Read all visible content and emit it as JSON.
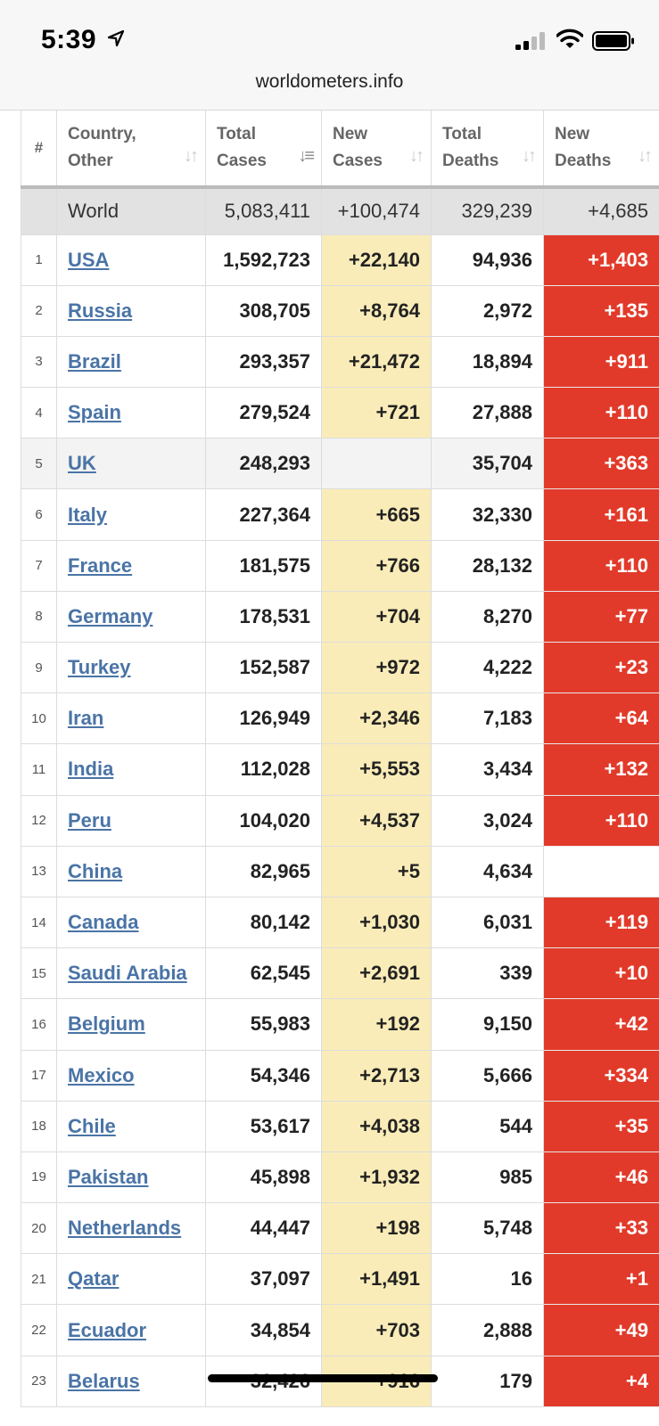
{
  "status_bar": {
    "time": "5:39"
  },
  "browser": {
    "url": "worldometers.info"
  },
  "table": {
    "headers": {
      "rank": "#",
      "country_line1": "Country,",
      "country_line2": "Other",
      "total_cases_line1": "Total",
      "total_cases_line2": "Cases",
      "new_cases_line1": "New",
      "new_cases_line2": "Cases",
      "total_deaths_line1": "Total",
      "total_deaths_line2": "Deaths",
      "new_deaths_line1": "New",
      "new_deaths_line2": "Deaths"
    },
    "world": {
      "name": "World",
      "total_cases": "5,083,411",
      "new_cases": "+100,474",
      "total_deaths": "329,239",
      "new_deaths": "+4,685"
    },
    "rows": [
      {
        "rank": "1",
        "country": "USA",
        "total_cases": "1,592,723",
        "new_cases": "+22,140",
        "total_deaths": "94,936",
        "new_deaths": "+1,403"
      },
      {
        "rank": "2",
        "country": "Russia",
        "total_cases": "308,705",
        "new_cases": "+8,764",
        "total_deaths": "2,972",
        "new_deaths": "+135"
      },
      {
        "rank": "3",
        "country": "Brazil",
        "total_cases": "293,357",
        "new_cases": "+21,472",
        "total_deaths": "18,894",
        "new_deaths": "+911"
      },
      {
        "rank": "4",
        "country": "Spain",
        "total_cases": "279,524",
        "new_cases": "+721",
        "total_deaths": "27,888",
        "new_deaths": "+110"
      },
      {
        "rank": "5",
        "country": "UK",
        "total_cases": "248,293",
        "new_cases": "",
        "total_deaths": "35,704",
        "new_deaths": "+363"
      },
      {
        "rank": "6",
        "country": "Italy",
        "total_cases": "227,364",
        "new_cases": "+665",
        "total_deaths": "32,330",
        "new_deaths": "+161"
      },
      {
        "rank": "7",
        "country": "France",
        "total_cases": "181,575",
        "new_cases": "+766",
        "total_deaths": "28,132",
        "new_deaths": "+110"
      },
      {
        "rank": "8",
        "country": "Germany",
        "total_cases": "178,531",
        "new_cases": "+704",
        "total_deaths": "8,270",
        "new_deaths": "+77"
      },
      {
        "rank": "9",
        "country": "Turkey",
        "total_cases": "152,587",
        "new_cases": "+972",
        "total_deaths": "4,222",
        "new_deaths": "+23"
      },
      {
        "rank": "10",
        "country": "Iran",
        "total_cases": "126,949",
        "new_cases": "+2,346",
        "total_deaths": "7,183",
        "new_deaths": "+64"
      },
      {
        "rank": "11",
        "country": "India",
        "total_cases": "112,028",
        "new_cases": "+5,553",
        "total_deaths": "3,434",
        "new_deaths": "+132"
      },
      {
        "rank": "12",
        "country": "Peru",
        "total_cases": "104,020",
        "new_cases": "+4,537",
        "total_deaths": "3,024",
        "new_deaths": "+110"
      },
      {
        "rank": "13",
        "country": "China",
        "total_cases": "82,965",
        "new_cases": "+5",
        "total_deaths": "4,634",
        "new_deaths": ""
      },
      {
        "rank": "14",
        "country": "Canada",
        "total_cases": "80,142",
        "new_cases": "+1,030",
        "total_deaths": "6,031",
        "new_deaths": "+119"
      },
      {
        "rank": "15",
        "country": "Saudi Arabia",
        "total_cases": "62,545",
        "new_cases": "+2,691",
        "total_deaths": "339",
        "new_deaths": "+10"
      },
      {
        "rank": "16",
        "country": "Belgium",
        "total_cases": "55,983",
        "new_cases": "+192",
        "total_deaths": "9,150",
        "new_deaths": "+42"
      },
      {
        "rank": "17",
        "country": "Mexico",
        "total_cases": "54,346",
        "new_cases": "+2,713",
        "total_deaths": "5,666",
        "new_deaths": "+334"
      },
      {
        "rank": "18",
        "country": "Chile",
        "total_cases": "53,617",
        "new_cases": "+4,038",
        "total_deaths": "544",
        "new_deaths": "+35"
      },
      {
        "rank": "19",
        "country": "Pakistan",
        "total_cases": "45,898",
        "new_cases": "+1,932",
        "total_deaths": "985",
        "new_deaths": "+46"
      },
      {
        "rank": "20",
        "country": "Netherlands",
        "total_cases": "44,447",
        "new_cases": "+198",
        "total_deaths": "5,748",
        "new_deaths": "+33"
      },
      {
        "rank": "21",
        "country": "Qatar",
        "total_cases": "37,097",
        "new_cases": "+1,491",
        "total_deaths": "16",
        "new_deaths": "+1"
      },
      {
        "rank": "22",
        "country": "Ecuador",
        "total_cases": "34,854",
        "new_cases": "+703",
        "total_deaths": "2,888",
        "new_deaths": "+49"
      },
      {
        "rank": "23",
        "country": "Belarus",
        "total_cases": "32,426",
        "new_cases": "+916",
        "total_deaths": "179",
        "new_deaths": "+4"
      }
    ]
  }
}
